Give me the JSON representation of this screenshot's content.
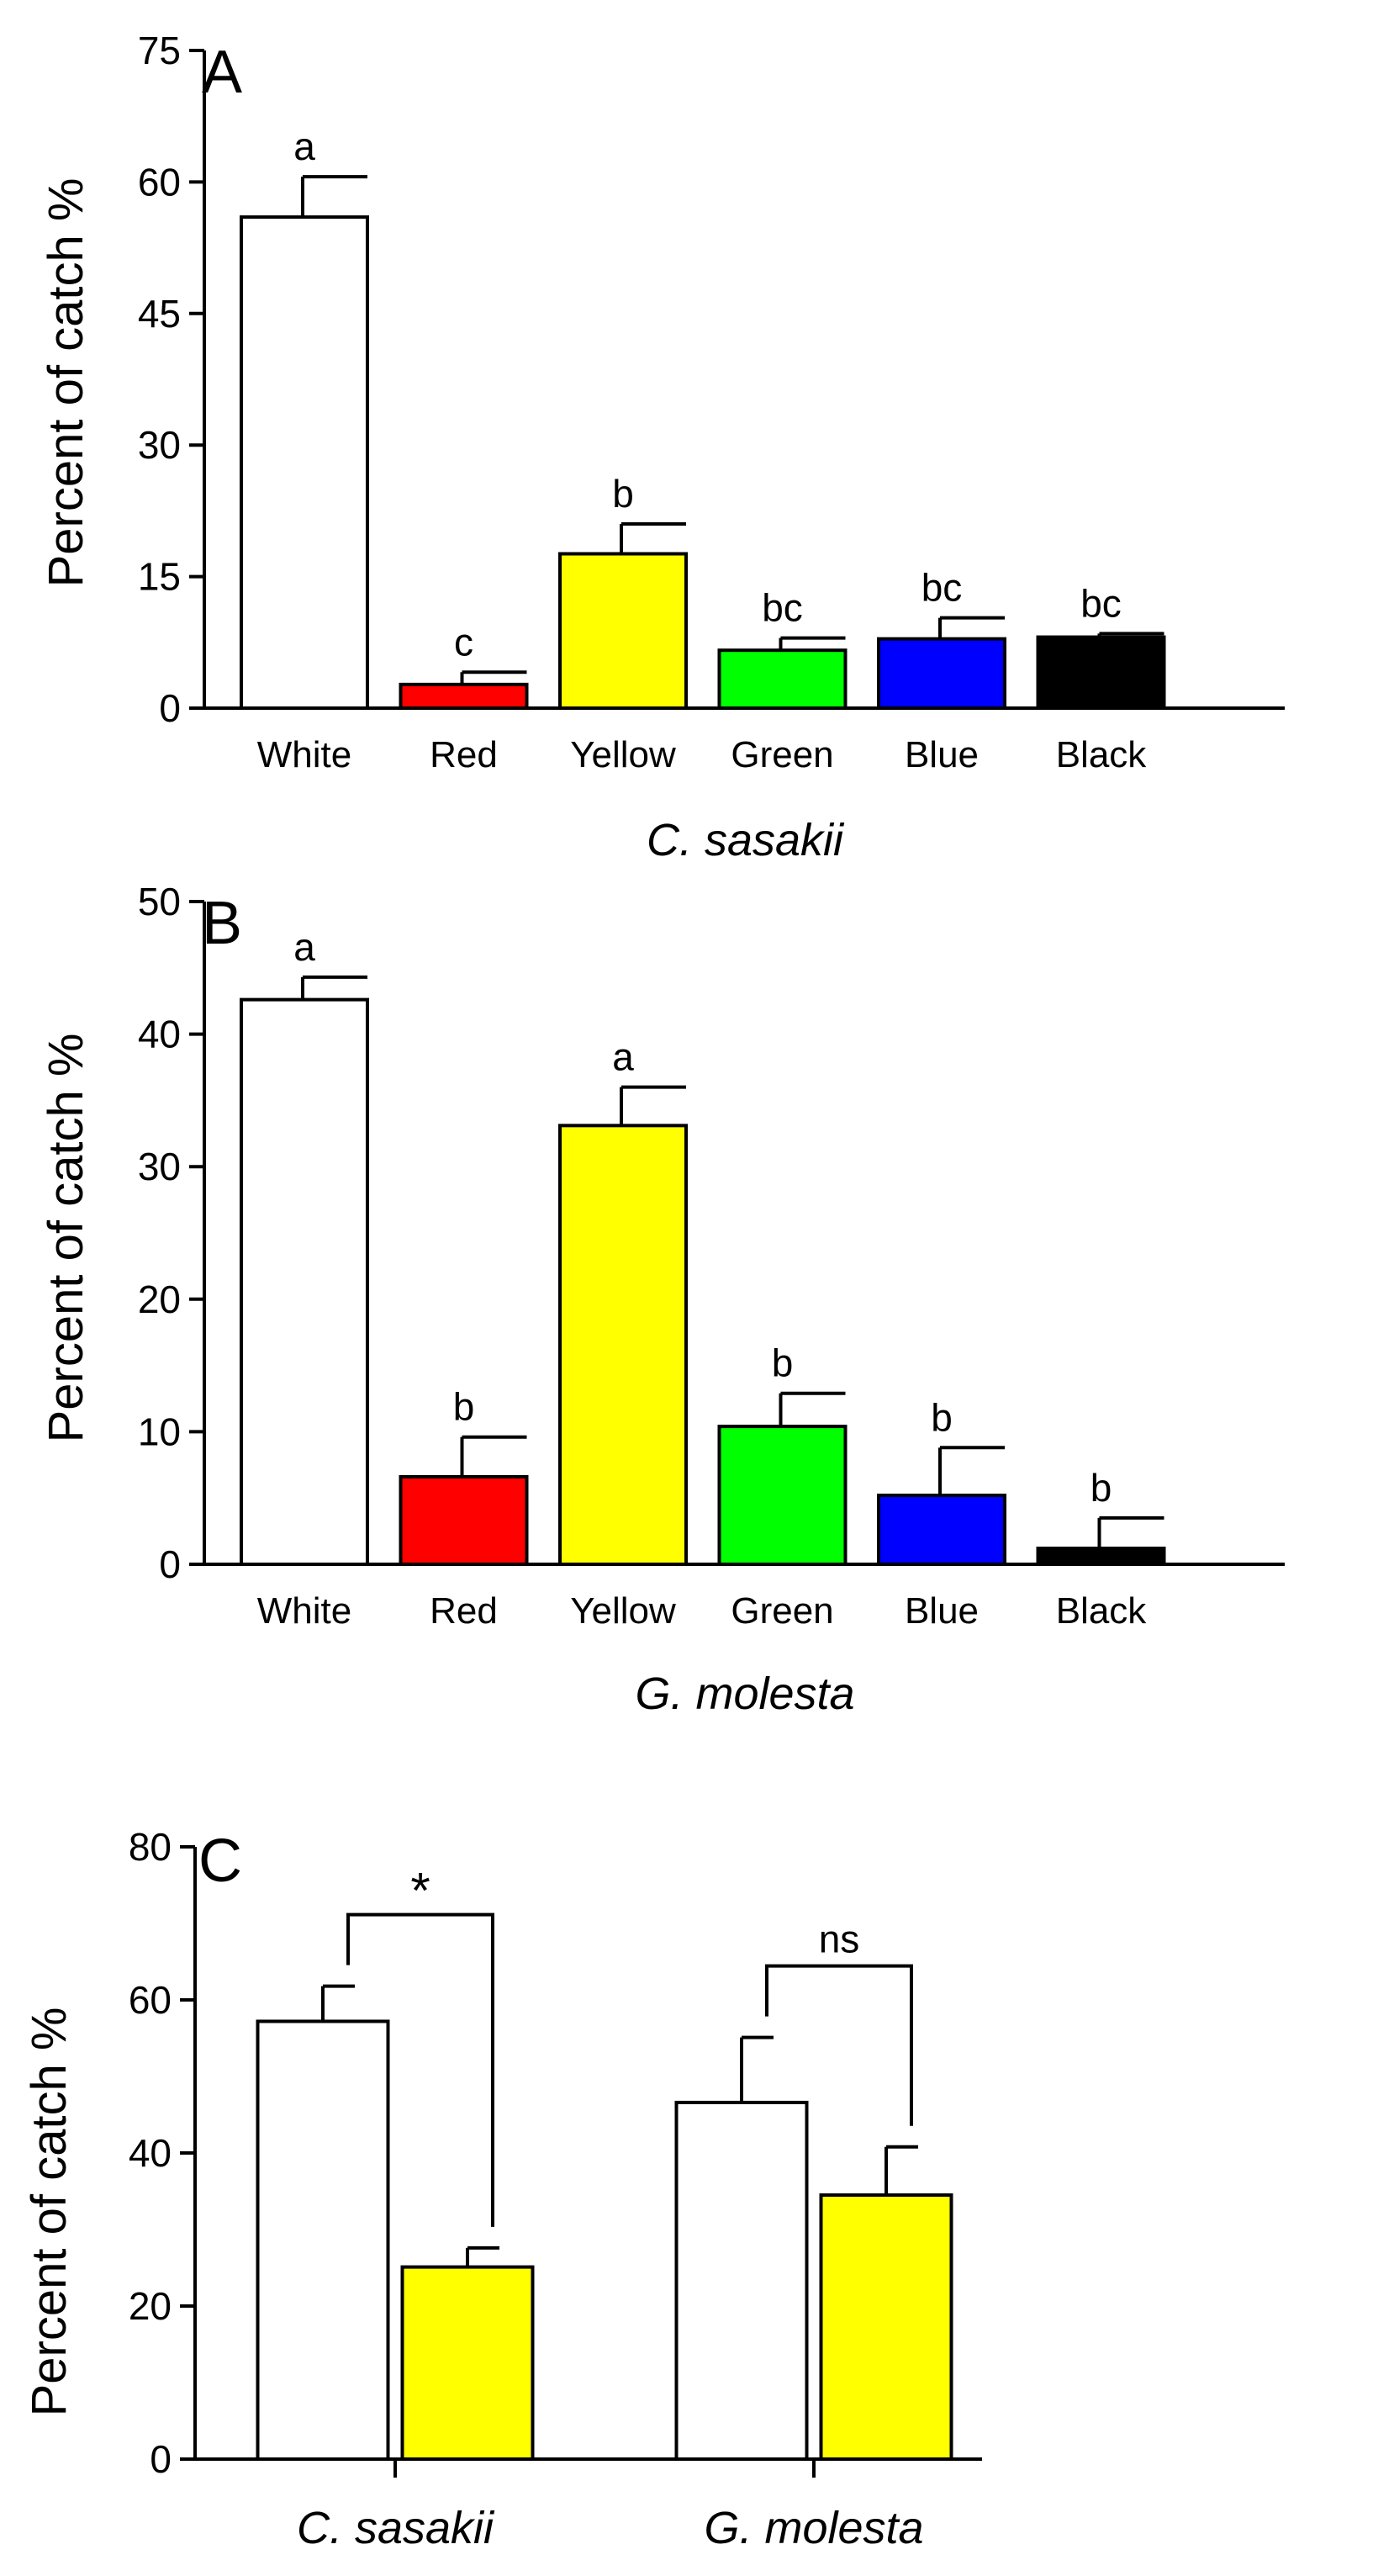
{
  "chart_data": [
    {
      "panel": "A",
      "type": "bar",
      "ylabel": "Percent of catch %",
      "xlabel": "C. sasakii",
      "ylim": [
        0,
        75
      ],
      "yticks": [
        0,
        15,
        30,
        45,
        60,
        75
      ],
      "categories": [
        "White",
        "Red",
        "Yellow",
        "Green",
        "Blue",
        "Black"
      ],
      "values": [
        56,
        2.7,
        17.6,
        6.6,
        7.9,
        8.1
      ],
      "errors": [
        4.6,
        1.4,
        3.4,
        1.4,
        2.4,
        0.4
      ],
      "letters": [
        "a",
        "c",
        "b",
        "bc",
        "bc",
        "bc"
      ],
      "colors": [
        "#ffffff",
        "#ff0000",
        "#ffff00",
        "#00ff00",
        "#0000ff",
        "#000000"
      ]
    },
    {
      "panel": "B",
      "type": "bar",
      "ylabel": "Percent of catch %",
      "xlabel": "G. molesta",
      "ylim": [
        0,
        50
      ],
      "yticks": [
        0,
        10,
        20,
        30,
        40,
        50
      ],
      "categories": [
        "White",
        "Red",
        "Yellow",
        "Green",
        "Blue",
        "Black"
      ],
      "values": [
        42.6,
        6.6,
        33.1,
        10.4,
        5.2,
        1.2
      ],
      "errors": [
        1.7,
        3.0,
        2.9,
        2.5,
        3.6,
        2.3
      ],
      "letters": [
        "a",
        "b",
        "a",
        "b",
        "b",
        "b"
      ],
      "colors": [
        "#ffffff",
        "#ff0000",
        "#ffff00",
        "#00ff00",
        "#0000ff",
        "#000000"
      ]
    },
    {
      "panel": "C",
      "type": "bar",
      "ylabel": "Percent of catch %",
      "ylim": [
        0,
        80
      ],
      "yticks": [
        0,
        20,
        40,
        60,
        80
      ],
      "categories": [
        "C. sasakii",
        "G. molesta"
      ],
      "series": [
        {
          "name": "White",
          "color": "#ffffff",
          "values": [
            57.2,
            46.6
          ],
          "errors": [
            4.6,
            8.5
          ]
        },
        {
          "name": "Yellow",
          "color": "#ffff00",
          "values": [
            25.1,
            34.5
          ],
          "errors": [
            2.5,
            6.3
          ]
        }
      ],
      "significance": [
        "*",
        "ns"
      ]
    }
  ]
}
